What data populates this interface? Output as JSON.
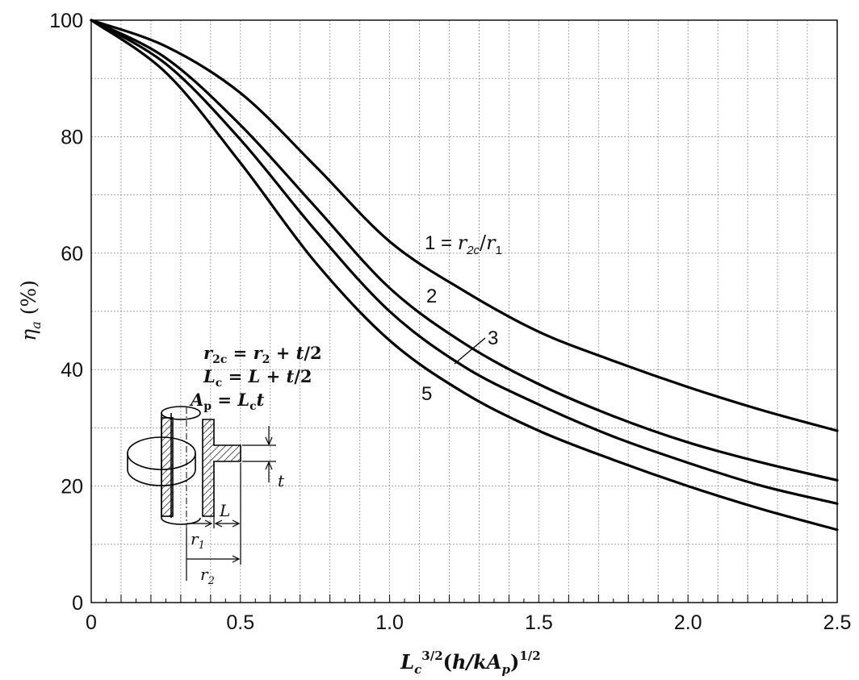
{
  "chart_data": {
    "type": "line",
    "title": "",
    "xlabel": "L_c^{3/2}(h/kA_p)^{1/2}",
    "ylabel": "η_a (%)",
    "xlim": [
      0,
      2.5
    ],
    "ylim": [
      0,
      100
    ],
    "x_ticks": [
      0,
      0.5,
      1.0,
      1.5,
      2.0,
      2.5
    ],
    "x_tick_labels": [
      "0",
      "0.5",
      "1.0",
      "1.5",
      "2.0",
      "2.5"
    ],
    "y_ticks": [
      0,
      20,
      40,
      60,
      80,
      100
    ],
    "y_tick_labels": [
      "0",
      "20",
      "40",
      "60",
      "80",
      "100"
    ],
    "grid": true,
    "series": [
      {
        "name": "1 = r2c/r1",
        "x": [
          0,
          0.25,
          0.5,
          0.75,
          1.0,
          1.25,
          1.5,
          1.75,
          2.0,
          2.25,
          2.5
        ],
        "y": [
          100,
          95.5,
          87.5,
          75,
          62,
          53.5,
          46.5,
          41.5,
          37,
          33,
          29.5
        ]
      },
      {
        "name": "2",
        "x": [
          0,
          0.25,
          0.5,
          0.75,
          1.0,
          1.25,
          1.5,
          1.75,
          2.0,
          2.25,
          2.5
        ],
        "y": [
          100,
          93.5,
          82,
          68,
          54,
          44.5,
          37.5,
          32,
          27.5,
          24,
          21
        ]
      },
      {
        "name": "3",
        "x": [
          0,
          0.25,
          0.5,
          0.75,
          1.0,
          1.25,
          1.5,
          1.75,
          2.0,
          2.25,
          2.5
        ],
        "y": [
          100,
          92.5,
          79.5,
          64,
          50,
          40.5,
          34,
          28.5,
          24,
          20,
          17
        ]
      },
      {
        "name": "5",
        "x": [
          0,
          0.25,
          0.5,
          0.75,
          1.0,
          1.25,
          1.5,
          1.75,
          2.0,
          2.25,
          2.5
        ],
        "y": [
          100,
          91,
          75.5,
          58.5,
          45,
          36,
          29.5,
          24.5,
          20,
          16,
          12.5
        ]
      }
    ],
    "annotations": {
      "curve_labels": [
        "1 = r2c/r1",
        "2",
        "3",
        "5"
      ],
      "inset_equations": [
        "r2c = r2 + t/2",
        "Lc = L + t/2",
        "Ap = Lc t"
      ],
      "inset_dimension_labels": [
        "t",
        "L",
        "r1",
        "r2"
      ]
    }
  }
}
